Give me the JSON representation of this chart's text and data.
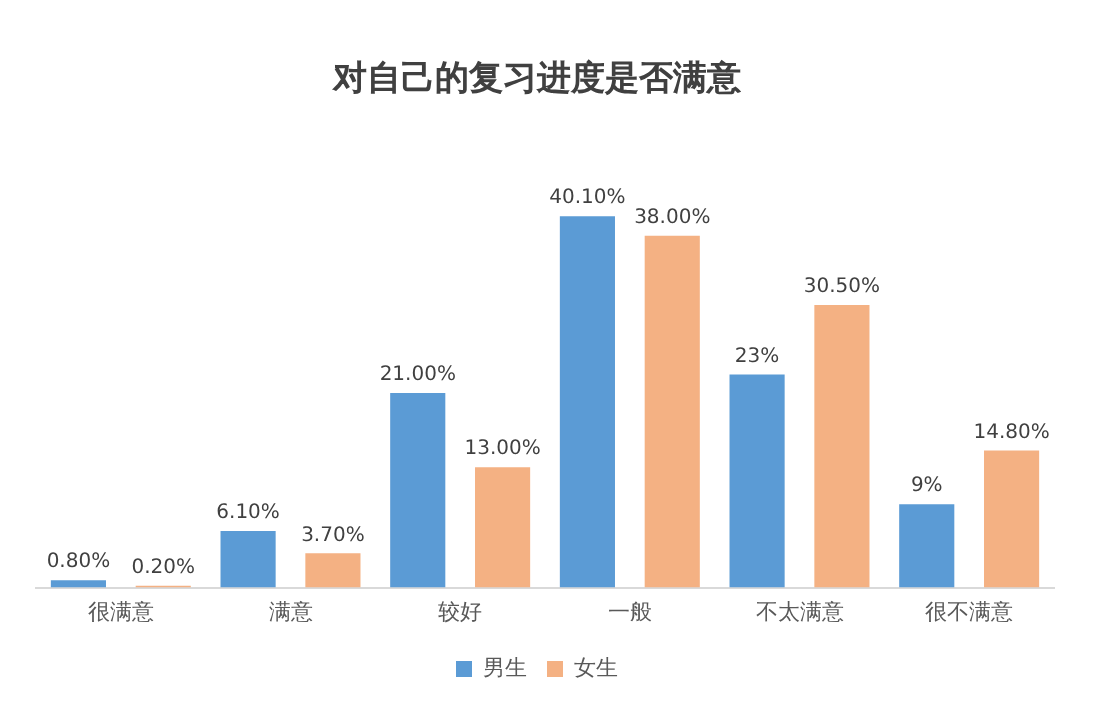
{
  "chart_data": {
    "type": "bar",
    "title": "对自己的复习进度是否满意",
    "categories": [
      "很满意",
      "满意",
      "较好",
      "一般",
      "不太满意",
      "很不满意"
    ],
    "series": [
      {
        "name": "男生",
        "color": "#5b9bd5",
        "values": [
          0.8,
          6.1,
          21.0,
          40.1,
          23,
          9
        ],
        "value_labels": [
          "0.80%",
          "6.10%",
          "21.00%",
          "40.10%",
          "23%",
          "9%"
        ]
      },
      {
        "name": "女生",
        "color": "#f4b183",
        "values": [
          0.2,
          3.7,
          13.0,
          38.0,
          30.5,
          14.8
        ],
        "value_labels": [
          "0.20%",
          "3.70%",
          "13.00%",
          "38.00%",
          "30.50%",
          "14.80%"
        ]
      }
    ],
    "legend": "bottom",
    "grid": false
  }
}
